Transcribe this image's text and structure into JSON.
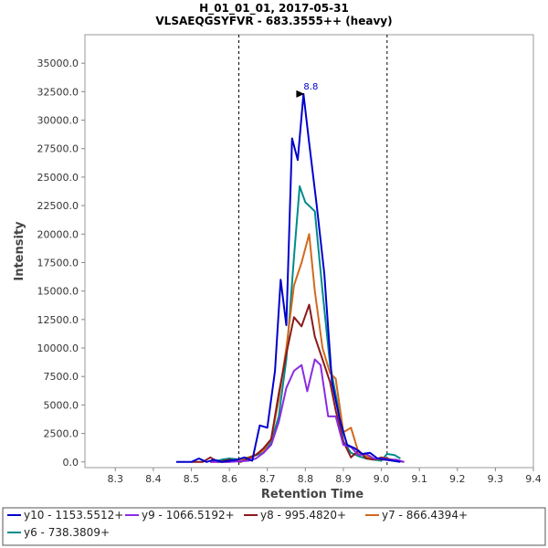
{
  "chart_data": {
    "type": "line",
    "title": "H_01_01_01, 2017-05-31",
    "subtitle": "VLSAEQGSYFVR - 683.3555++ (heavy)",
    "xlabel": "Retention Time",
    "ylabel": "Intensity",
    "xlim": [
      8.22,
      9.4
    ],
    "ylim": [
      -500,
      37500
    ],
    "xticks": [
      "8.3",
      "8.4",
      "8.5",
      "8.6",
      "8.7",
      "8.8",
      "8.9",
      "9.0",
      "9.1",
      "9.2",
      "9.3",
      "9.4"
    ],
    "yticks": [
      "0.0",
      "2500.0",
      "5000.0",
      "7500.0",
      "10000.0",
      "12500.0",
      "15000.0",
      "17500.0",
      "20000.0",
      "22500.0",
      "25000.0",
      "27500.0",
      "30000.0",
      "32500.0",
      "35000.0"
    ],
    "grid": false,
    "legend_position": "bottom",
    "boundaries": [
      8.625,
      9.015
    ],
    "annotation": {
      "x": 8.805,
      "y": 32300,
      "label": "8.8"
    },
    "series": [
      {
        "name": "y10 - 1153.5512+",
        "color": "#0000cc",
        "x": [
          8.46,
          8.5,
          8.52,
          8.54,
          8.56,
          8.58,
          8.6,
          8.62,
          8.64,
          8.66,
          8.68,
          8.7,
          8.72,
          8.735,
          8.75,
          8.765,
          8.78,
          8.795,
          8.81,
          8.83,
          8.85,
          8.87,
          8.89,
          8.91,
          8.93,
          8.95,
          8.97,
          8.99,
          9.01,
          9.03,
          9.05
        ],
        "y": [
          0,
          0,
          300,
          0,
          200,
          0,
          100,
          200,
          400,
          100,
          3200,
          3000,
          8000,
          16000,
          12000,
          28400,
          26500,
          32300,
          28000,
          22500,
          16500,
          7000,
          3800,
          1500,
          1200,
          700,
          800,
          300,
          200,
          100,
          0
        ]
      },
      {
        "name": "y9 - 1066.5192+",
        "color": "#8a2be2",
        "x": [
          8.55,
          8.6,
          8.65,
          8.67,
          8.69,
          8.71,
          8.73,
          8.75,
          8.77,
          8.79,
          8.805,
          8.825,
          8.84,
          8.86,
          8.88,
          8.9,
          8.92,
          8.94,
          8.96,
          8.98,
          9.0,
          9.02,
          9.04,
          9.06
        ],
        "y": [
          0,
          0,
          100,
          300,
          800,
          1500,
          3500,
          6500,
          8000,
          8500,
          6200,
          9000,
          8500,
          4000,
          4000,
          1500,
          1300,
          600,
          700,
          300,
          300,
          200,
          200,
          0
        ]
      },
      {
        "name": "y8 - 995.4820+",
        "color": "#8b1a1a",
        "x": [
          8.5,
          8.53,
          8.55,
          8.57,
          8.6,
          8.63,
          8.65,
          8.67,
          8.69,
          8.71,
          8.73,
          8.75,
          8.77,
          8.79,
          8.81,
          8.825,
          8.845,
          8.865,
          8.88,
          8.9,
          8.92,
          8.94,
          8.96,
          8.98,
          9.0,
          9.03,
          9.06
        ],
        "y": [
          0,
          0,
          400,
          0,
          200,
          0,
          300,
          600,
          1200,
          2000,
          6000,
          9500,
          12700,
          11900,
          13800,
          11000,
          9000,
          7000,
          4500,
          1800,
          400,
          1000,
          300,
          200,
          400,
          200,
          0
        ]
      },
      {
        "name": "y7 - 866.4394+",
        "color": "#d2691e",
        "x": [
          8.55,
          8.6,
          8.63,
          8.66,
          8.69,
          8.71,
          8.73,
          8.75,
          8.77,
          8.79,
          8.81,
          8.825,
          8.845,
          8.865,
          8.88,
          8.9,
          8.92,
          8.94,
          8.96,
          8.98,
          9.0,
          9.03,
          9.06
        ],
        "y": [
          0,
          0,
          200,
          500,
          1000,
          2000,
          5500,
          10000,
          15500,
          17500,
          20000,
          15000,
          10000,
          7800,
          7300,
          2600,
          3000,
          800,
          500,
          300,
          200,
          200,
          0
        ]
      },
      {
        "name": "y6 - 738.3809+",
        "color": "#008b8b",
        "x": [
          8.55,
          8.58,
          8.6,
          8.63,
          8.66,
          8.69,
          8.71,
          8.73,
          8.75,
          8.77,
          8.785,
          8.8,
          8.825,
          8.845,
          8.865,
          8.885,
          8.9,
          8.92,
          8.94,
          8.96,
          8.98,
          9.0,
          9.015,
          9.035,
          9.05
        ],
        "y": [
          0,
          200,
          300,
          200,
          500,
          800,
          1800,
          4000,
          9000,
          18000,
          24200,
          22800,
          22000,
          15000,
          8500,
          5000,
          1800,
          800,
          500,
          300,
          200,
          100,
          700,
          600,
          300
        ]
      }
    ]
  }
}
